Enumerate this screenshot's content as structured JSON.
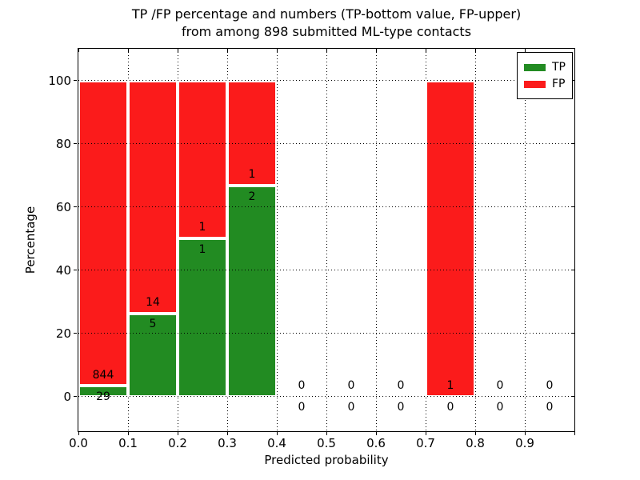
{
  "title": {
    "line1": "TP /FP percentage and numbers (TP-bottom value, FP-upper)",
    "line2": "from among 898 submitted ML-type contacts"
  },
  "axes": {
    "xlabel": "Predicted probability",
    "ylabel": "Percentage",
    "xlim": [
      0.0,
      1.0
    ],
    "ylim": [
      -11,
      110
    ],
    "xticks": [
      {
        "v": 0.0,
        "label": "0.0"
      },
      {
        "v": 0.1,
        "label": "0.1"
      },
      {
        "v": 0.2,
        "label": "0.2"
      },
      {
        "v": 0.3,
        "label": "0.3"
      },
      {
        "v": 0.4,
        "label": "0.4"
      },
      {
        "v": 0.5,
        "label": "0.5"
      },
      {
        "v": 0.6,
        "label": "0.6"
      },
      {
        "v": 0.7,
        "label": "0.7"
      },
      {
        "v": 0.8,
        "label": "0.8"
      },
      {
        "v": 0.9,
        "label": "0.9"
      },
      {
        "v": 1.0,
        "label": ""
      }
    ],
    "yticks": [
      {
        "v": 0,
        "label": "0"
      },
      {
        "v": 20,
        "label": "20"
      },
      {
        "v": 40,
        "label": "40"
      },
      {
        "v": 60,
        "label": "60"
      },
      {
        "v": 80,
        "label": "80"
      },
      {
        "v": 100,
        "label": "100"
      }
    ],
    "grid": "dotted"
  },
  "legend": {
    "position": "upper-right",
    "items": [
      {
        "label": "TP",
        "color": "#228B22"
      },
      {
        "label": "FP",
        "color": "#fb1b1b"
      }
    ]
  },
  "colors": {
    "tp": "#228B22",
    "fp": "#fb1b1b",
    "grid": "#000000",
    "bar_edge": "#ffffff"
  },
  "chart_data": {
    "type": "bar",
    "stacked": true,
    "normalized": "each bin scaled to 100%",
    "title": "TP /FP percentage and numbers (TP-bottom value, FP-upper) from among 898 submitted ML-type contacts",
    "xlabel": "Predicted probability",
    "ylabel": "Percentage",
    "total_contacts": 898,
    "bin_width": 0.1,
    "categories": [
      "0.0-0.1",
      "0.1-0.2",
      "0.2-0.3",
      "0.3-0.4",
      "0.4-0.5",
      "0.5-0.6",
      "0.6-0.7",
      "0.7-0.8",
      "0.8-0.9",
      "0.9-1.0"
    ],
    "series": [
      {
        "name": "TP",
        "values": [
          29,
          5,
          1,
          2,
          0,
          0,
          0,
          0,
          0,
          0
        ]
      },
      {
        "name": "FP",
        "values": [
          844,
          14,
          1,
          1,
          0,
          0,
          0,
          1,
          0,
          0
        ]
      }
    ],
    "tp_percentage_per_bin": [
      3.3,
      26.3,
      50.0,
      66.7,
      0,
      0,
      0,
      0,
      0,
      0
    ]
  }
}
